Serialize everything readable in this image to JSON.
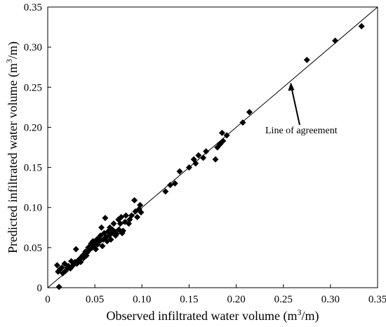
{
  "chart_data": {
    "type": "scatter",
    "xlabel": "Observed infiltrated water volume (m",
    "xlabel_sup": "3",
    "xlabel_end": "/m)",
    "ylabel": "Predicted infiltrated water volume (m",
    "ylabel_sup": "3",
    "ylabel_end": "/m)",
    "xlim": [
      0,
      0.35
    ],
    "ylim": [
      0,
      0.35
    ],
    "x_ticks": [
      "0",
      "0.05",
      "0.10",
      "0.15",
      "0.20",
      "0.25",
      "0.30",
      "0.35"
    ],
    "y_ticks": [
      "0",
      "0.05",
      "0.10",
      "0.15",
      "0.20",
      "0.25",
      "0.30",
      "0.35"
    ],
    "marker": "diamond",
    "marker_color": "#000000",
    "grid": false,
    "reference_line": {
      "name": "Line of agreement",
      "from": [
        0,
        0
      ],
      "to": [
        0.35,
        0.35
      ]
    },
    "annotation": {
      "text": "Line of agreement",
      "points_to": [
        0.258,
        0.256
      ]
    },
    "points": [
      [
        0.01,
        0.028
      ],
      [
        0.011,
        0.02
      ],
      [
        0.012,
        0.001
      ],
      [
        0.013,
        0.023
      ],
      [
        0.015,
        0.025
      ],
      [
        0.016,
        0.018
      ],
      [
        0.018,
        0.03
      ],
      [
        0.019,
        0.021
      ],
      [
        0.021,
        0.025
      ],
      [
        0.022,
        0.027
      ],
      [
        0.024,
        0.024
      ],
      [
        0.025,
        0.033
      ],
      [
        0.027,
        0.028
      ],
      [
        0.029,
        0.032
      ],
      [
        0.03,
        0.048
      ],
      [
        0.031,
        0.03
      ],
      [
        0.033,
        0.035
      ],
      [
        0.034,
        0.036
      ],
      [
        0.035,
        0.032
      ],
      [
        0.036,
        0.038
      ],
      [
        0.037,
        0.04
      ],
      [
        0.038,
        0.037
      ],
      [
        0.039,
        0.042
      ],
      [
        0.04,
        0.045
      ],
      [
        0.041,
        0.04
      ],
      [
        0.042,
        0.044
      ],
      [
        0.043,
        0.05
      ],
      [
        0.044,
        0.047
      ],
      [
        0.045,
        0.052
      ],
      [
        0.046,
        0.055
      ],
      [
        0.047,
        0.05
      ],
      [
        0.048,
        0.058
      ],
      [
        0.049,
        0.053
      ],
      [
        0.05,
        0.056
      ],
      [
        0.051,
        0.048
      ],
      [
        0.052,
        0.06
      ],
      [
        0.053,
        0.054
      ],
      [
        0.054,
        0.062
      ],
      [
        0.055,
        0.058
      ],
      [
        0.056,
        0.065
      ],
      [
        0.057,
        0.075
      ],
      [
        0.058,
        0.052
      ],
      [
        0.059,
        0.06
      ],
      [
        0.06,
        0.068
      ],
      [
        0.061,
        0.087
      ],
      [
        0.062,
        0.063
      ],
      [
        0.063,
        0.058
      ],
      [
        0.064,
        0.07
      ],
      [
        0.065,
        0.065
      ],
      [
        0.066,
        0.075
      ],
      [
        0.067,
        0.06
      ],
      [
        0.068,
        0.068
      ],
      [
        0.069,
        0.072
      ],
      [
        0.07,
        0.08
      ],
      [
        0.071,
        0.07
      ],
      [
        0.072,
        0.065
      ],
      [
        0.073,
        0.067
      ],
      [
        0.075,
        0.085
      ],
      [
        0.076,
        0.072
      ],
      [
        0.077,
        0.08
      ],
      [
        0.078,
        0.088
      ],
      [
        0.079,
        0.068
      ],
      [
        0.08,
        0.071
      ],
      [
        0.082,
        0.082
      ],
      [
        0.083,
        0.09
      ],
      [
        0.086,
        0.08
      ],
      [
        0.087,
        0.085
      ],
      [
        0.089,
        0.09
      ],
      [
        0.092,
        0.109
      ],
      [
        0.093,
        0.095
      ],
      [
        0.095,
        0.088
      ],
      [
        0.097,
        0.098
      ],
      [
        0.098,
        0.103
      ],
      [
        0.099,
        0.094
      ],
      [
        0.125,
        0.12
      ],
      [
        0.13,
        0.128
      ],
      [
        0.135,
        0.13
      ],
      [
        0.14,
        0.145
      ],
      [
        0.15,
        0.15
      ],
      [
        0.155,
        0.16
      ],
      [
        0.157,
        0.155
      ],
      [
        0.16,
        0.165
      ],
      [
        0.165,
        0.162
      ],
      [
        0.168,
        0.17
      ],
      [
        0.178,
        0.16
      ],
      [
        0.18,
        0.175
      ],
      [
        0.183,
        0.179
      ],
      [
        0.185,
        0.193
      ],
      [
        0.186,
        0.183
      ],
      [
        0.19,
        0.19
      ],
      [
        0.207,
        0.206
      ],
      [
        0.214,
        0.219
      ],
      [
        0.275,
        0.284
      ],
      [
        0.305,
        0.308
      ],
      [
        0.333,
        0.326
      ]
    ]
  }
}
